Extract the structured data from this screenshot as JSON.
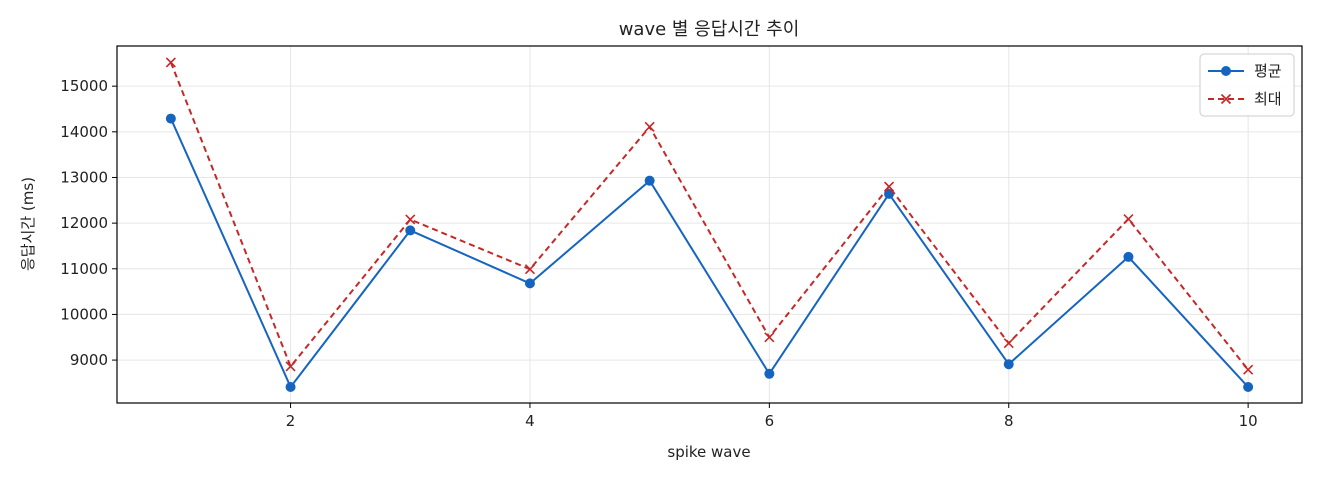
{
  "chart_data": {
    "type": "line",
    "title": "wave 별 응답시간 추이",
    "xlabel": "spike wave",
    "ylabel": "응답시간 (ms)",
    "x": [
      1,
      2,
      3,
      4,
      5,
      6,
      7,
      8,
      9,
      10
    ],
    "xlim": [
      0.55,
      10.45
    ],
    "ylim": [
      8060,
      15880
    ],
    "xticks": [
      2,
      4,
      6,
      8,
      10
    ],
    "yticks": [
      9000,
      10000,
      11000,
      12000,
      13000,
      14000,
      15000
    ],
    "grid": true,
    "legend_position": "top-right",
    "series": [
      {
        "name": "평균",
        "values": [
          14290,
          8410,
          11840,
          10680,
          12930,
          8700,
          12640,
          8910,
          11260,
          8410
        ],
        "color": "#1565c0",
        "line_style": "solid",
        "marker": "circle"
      },
      {
        "name": "최대",
        "values": [
          15520,
          8860,
          12080,
          10990,
          14110,
          9500,
          12800,
          9370,
          12090,
          8790
        ],
        "color": "#c62828",
        "line_style": "dashed",
        "marker": "x"
      }
    ]
  }
}
